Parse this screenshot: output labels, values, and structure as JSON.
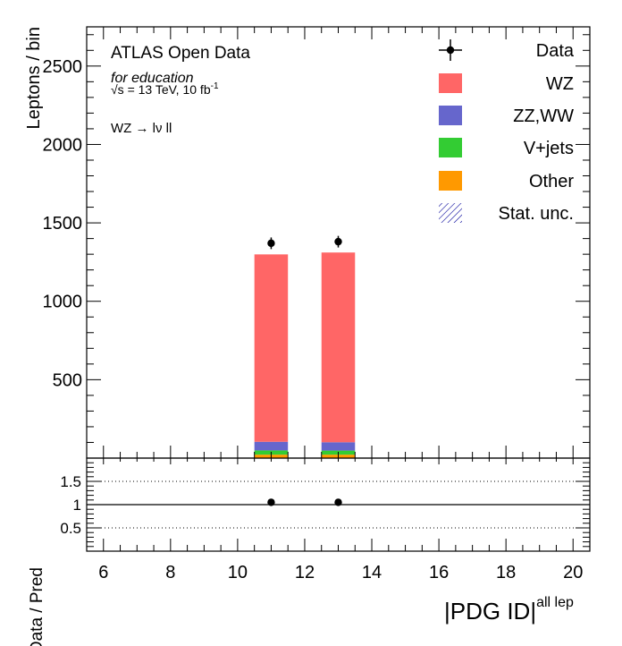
{
  "chart_data": {
    "type": "bar",
    "stacked": true,
    "experiment": "ATLAS Open Data",
    "subtitle": "for education",
    "energy_label": "√s = 13 TeV, 10 fb",
    "lumi_superscript": "-1",
    "channel_label": "WZ → lν ll",
    "xlabel": "|PDG ID|",
    "xlabel_superscript": "all lep",
    "ylabel": "Leptons / bin",
    "ratio_ylabel": "Data / Pred",
    "xlim": [
      5.5,
      20.5
    ],
    "ylim": [
      0,
      2750
    ],
    "ratio_ylim": [
      0,
      2
    ],
    "x_ticks": [
      "6",
      "8",
      "10",
      "12",
      "14",
      "16",
      "18",
      "20"
    ],
    "y_ticks": [
      "500",
      "1000",
      "1500",
      "2000",
      "2500"
    ],
    "ratio_y_ticks": [
      "0.5",
      "1",
      "1.5"
    ],
    "bin_width": 1,
    "bins": [
      11,
      13
    ],
    "series": [
      {
        "name": "Other",
        "color": "#ff9900",
        "values": [
          22,
          22
        ]
      },
      {
        "name": "V+jets",
        "color": "#33cc33",
        "values": [
          27,
          26
        ]
      },
      {
        "name": "ZZ,WW",
        "color": "#6666cc",
        "values": [
          55,
          53
        ]
      },
      {
        "name": "WZ",
        "color": "#ff6666",
        "values": [
          1195,
          1210
        ]
      }
    ],
    "data": {
      "name": "Data",
      "values": [
        1370,
        1380
      ],
      "errors": [
        37,
        37
      ]
    },
    "ratio": {
      "values": [
        1.05,
        1.05
      ]
    },
    "legend": [
      {
        "label": "Data",
        "kind": "marker"
      },
      {
        "label": "WZ",
        "kind": "fill",
        "color": "#ff6666"
      },
      {
        "label": "ZZ,WW",
        "kind": "fill",
        "color": "#6666cc"
      },
      {
        "label": "V+jets",
        "kind": "fill",
        "color": "#33cc33"
      },
      {
        "label": "Other",
        "kind": "fill",
        "color": "#ff9900"
      },
      {
        "label": "Stat. unc.",
        "kind": "hatch",
        "color": "#000099"
      }
    ],
    "legend_position": "top-right",
    "grid": false
  }
}
